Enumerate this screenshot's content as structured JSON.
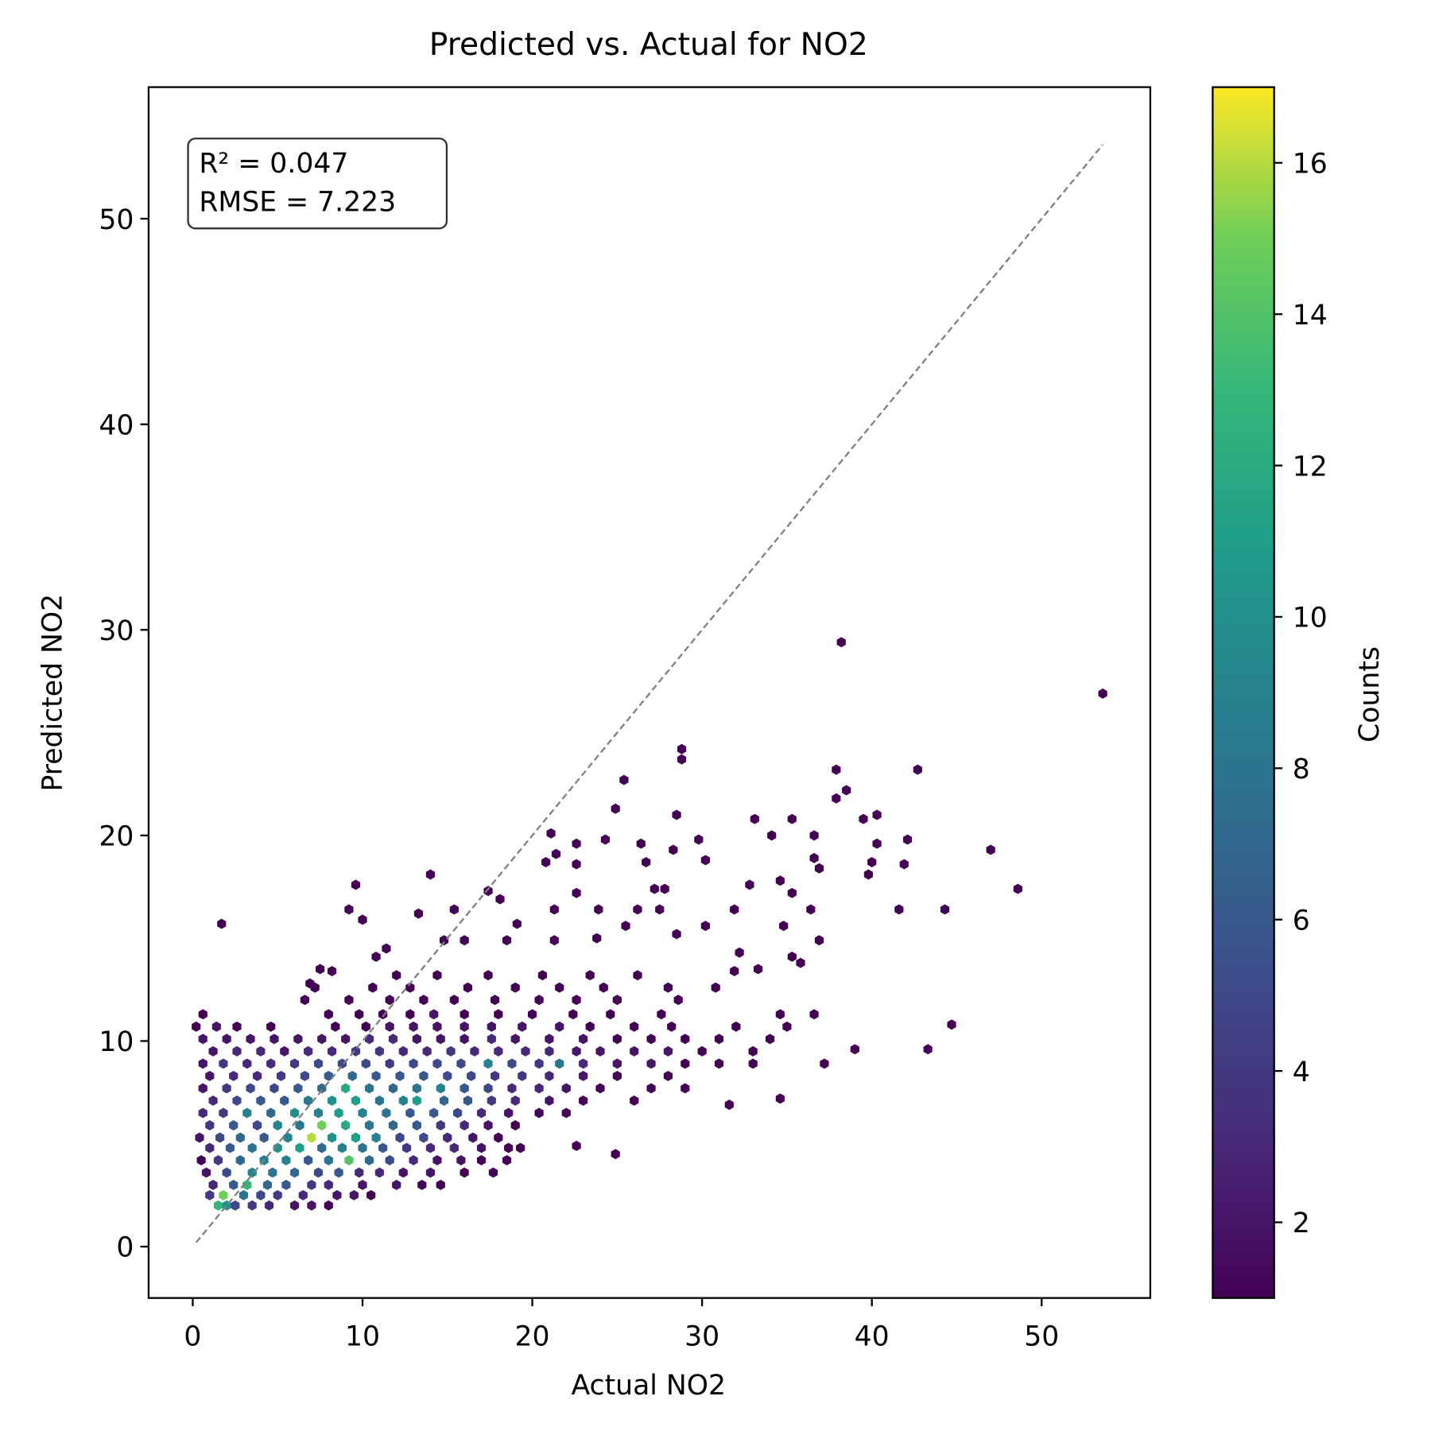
{
  "chart_data": {
    "type": "hexbin",
    "title": "Predicted vs. Actual for NO2",
    "x_label": "Actual NO2",
    "y_label": "Predicted NO2",
    "annotations": [
      "R² = 0.047",
      "RMSE = 7.223"
    ],
    "xlim": [
      -2.6,
      56.4
    ],
    "ylim": [
      -2.5,
      56.4
    ],
    "xticks": [
      0,
      10,
      20,
      30,
      40,
      50
    ],
    "yticks": [
      0,
      10,
      20,
      30,
      40,
      50
    ],
    "identity_line": {
      "color": "#808080",
      "x": [
        0.2,
        53.6
      ],
      "y": [
        0.2,
        53.6
      ]
    },
    "colormap": "viridis",
    "colorbar": {
      "label": "Counts",
      "lim": [
        1,
        17
      ],
      "ticks": [
        2,
        4,
        6,
        8,
        10,
        12,
        14,
        16
      ]
    },
    "x": [
      1.5,
      2.0,
      2.5,
      3.5,
      4.5,
      6,
      7,
      8,
      1.0,
      1.8,
      3.0,
      4.0,
      5.0,
      6.5,
      8.5,
      9.5,
      10.5,
      1.2,
      2.4,
      3.2,
      4.4,
      5.5,
      7,
      8,
      10,
      12,
      13.5,
      14.6,
      0.8,
      2.0,
      3.5,
      4.7,
      6.0,
      7.4,
      8.6,
      9.8,
      11,
      12.4,
      14,
      16,
      17.7,
      0.5,
      1.5,
      2.8,
      4.2,
      5.5,
      6.8,
      8.0,
      9.2,
      10.4,
      11.6,
      13,
      14.4,
      15.8,
      17,
      18.5,
      1.0,
      2.2,
      3.5,
      5.0,
      6.3,
      7.6,
      8.8,
      10.0,
      11.2,
      12.6,
      14.0,
      15.4,
      17.0,
      18.6,
      19.3,
      0.4,
      1.6,
      2.8,
      4.2,
      5.6,
      7.0,
      8.2,
      9.6,
      10.8,
      12.2,
      13.6,
      15.0,
      16.5,
      18.0,
      1.0,
      2.4,
      3.8,
      5.0,
      6.3,
      7.6,
      9.0,
      10.4,
      11.8,
      13.2,
      14.6,
      16.0,
      17.4,
      19.0,
      0.6,
      1.8,
      3.2,
      4.6,
      6.0,
      7.4,
      8.6,
      10.0,
      11.4,
      12.8,
      14.2,
      15.6,
      17.0,
      18.6,
      20.4,
      22,
      1.2,
      2.6,
      4.0,
      5.4,
      6.8,
      8.2,
      9.6,
      11.0,
      12.4,
      13.2,
      14.8,
      16.2,
      17.6,
      19.0,
      21,
      23,
      26,
      0.6,
      2.0,
      3.4,
      4.8,
      6.2,
      7.6,
      9.0,
      10.4,
      11.8,
      13.2,
      14.6,
      16.0,
      17.4,
      18.8,
      20.4,
      22,
      24,
      27,
      29,
      1.0,
      2.4,
      3.8,
      5.2,
      6.6,
      8.0,
      9.4,
      10.8,
      12.2,
      13.6,
      15.0,
      16.4,
      17.8,
      19.4,
      21,
      23,
      25,
      28,
      0.6,
      1.8,
      3.2,
      4.6,
      6.0,
      7.4,
      8.8,
      10.2,
      11.6,
      13.0,
      14.4,
      15.8,
      17.4,
      18.8,
      20.4,
      21.6,
      23,
      25,
      27,
      29,
      31,
      33,
      1.2,
      2.6,
      4.0,
      5.4,
      6.8,
      8.2,
      9.6,
      11.0,
      12.4,
      13.8,
      15.2,
      16.6,
      18,
      19.6,
      21,
      22.6,
      24,
      26,
      28,
      30,
      33,
      0.6,
      2.0,
      3.4,
      4.8,
      6.2,
      7.6,
      9.0,
      10.4,
      11.8,
      13.2,
      14.6,
      16,
      17.6,
      19,
      21,
      23,
      25,
      27,
      29,
      31,
      34,
      0.2,
      1.4,
      2.6,
      4.6,
      8.4,
      10.2,
      11.6,
      13,
      14.4,
      16,
      17.6,
      19.4,
      21.6,
      23.4,
      26,
      28.2,
      32,
      35,
      0.6,
      8,
      9.8,
      11.2,
      12.8,
      14.2,
      16,
      18,
      20,
      22.4,
      24.6,
      27.6,
      34.6,
      36.6,
      6.6,
      9.2,
      11.6,
      13.6,
      15.4,
      17.8,
      20.4,
      22.6,
      25,
      28.6,
      7.2,
      10.6,
      12.8,
      16.2,
      19,
      21.6,
      24.2,
      28,
      30.8,
      12,
      14.4,
      17.4,
      20.6,
      23.4,
      26.2,
      1.7,
      9.6,
      14,
      38.2,
      53.6,
      28.8,
      28.8,
      25.4,
      37.9,
      42.7,
      38.5,
      37.9,
      24.9,
      28.5,
      39.5,
      40.3,
      33.1,
      35.3,
      21.1,
      22.6,
      24.3,
      26.4,
      29.8,
      34.1,
      36.6,
      40.3,
      42.1,
      47,
      20.8,
      21.4,
      22.6,
      26.7,
      28.3,
      30.2,
      36.6,
      36.9,
      40.0,
      41.9,
      39.8,
      17.4,
      18.1,
      22.6,
      27.2,
      27.8,
      32.8,
      34.6,
      35.3,
      48.6,
      9.2,
      10,
      13.3,
      15.4,
      21.3,
      23.9,
      26.2,
      27.5,
      31.9,
      36.4,
      41.6,
      44.3,
      19.1,
      25.5,
      30.2,
      34.8,
      36.9,
      28.5,
      23.8,
      44.7,
      43.3,
      39.0,
      37.2,
      34.6,
      31.6,
      24.9,
      22.6,
      35.3,
      32.2,
      33.3,
      31.9,
      35.8,
      8.2,
      7.5,
      6.9,
      10.8,
      11.4,
      14.8,
      16.0,
      18.5,
      21.3
    ],
    "y": [
      2.0,
      2.0,
      2.0,
      2.0,
      2.0,
      2.0,
      2.0,
      2.0,
      2.5,
      2.5,
      2.5,
      2.5,
      2.5,
      2.5,
      2.5,
      2.5,
      2.5,
      3.0,
      3.0,
      3.0,
      3.0,
      3.0,
      3.0,
      3.0,
      3.0,
      3.0,
      3.0,
      3.0,
      3.6,
      3.6,
      3.6,
      3.6,
      3.6,
      3.6,
      3.6,
      3.6,
      3.6,
      3.6,
      3.6,
      3.6,
      3.6,
      4.2,
      4.2,
      4.2,
      4.2,
      4.2,
      4.2,
      4.2,
      4.2,
      4.2,
      4.2,
      4.2,
      4.2,
      4.2,
      4.2,
      4.2,
      4.8,
      4.8,
      4.8,
      4.8,
      4.8,
      4.8,
      4.8,
      4.8,
      4.8,
      4.8,
      4.8,
      4.8,
      4.8,
      4.8,
      4.8,
      5.3,
      5.3,
      5.3,
      5.3,
      5.3,
      5.3,
      5.3,
      5.3,
      5.3,
      5.3,
      5.3,
      5.3,
      5.3,
      5.3,
      5.9,
      5.9,
      5.9,
      5.9,
      5.9,
      5.9,
      5.9,
      5.9,
      5.9,
      5.9,
      5.9,
      5.9,
      5.9,
      5.9,
      6.5,
      6.5,
      6.5,
      6.5,
      6.5,
      6.5,
      6.5,
      6.5,
      6.5,
      6.5,
      6.5,
      6.5,
      6.5,
      6.5,
      6.5,
      6.5,
      7.1,
      7.1,
      7.1,
      7.1,
      7.1,
      7.1,
      7.1,
      7.1,
      7.1,
      7.1,
      7.1,
      7.1,
      7.1,
      7.1,
      7.1,
      7.1,
      7.1,
      7.7,
      7.7,
      7.7,
      7.7,
      7.7,
      7.7,
      7.7,
      7.7,
      7.7,
      7.7,
      7.7,
      7.7,
      7.7,
      7.7,
      7.7,
      7.7,
      7.7,
      7.7,
      7.7,
      8.3,
      8.3,
      8.3,
      8.3,
      8.3,
      8.3,
      8.3,
      8.3,
      8.3,
      8.3,
      8.3,
      8.3,
      8.3,
      8.3,
      8.3,
      8.3,
      8.3,
      8.3,
      8.9,
      8.9,
      8.9,
      8.9,
      8.9,
      8.9,
      8.9,
      8.9,
      8.9,
      8.9,
      8.9,
      8.9,
      8.9,
      8.9,
      8.9,
      8.9,
      8.9,
      8.9,
      8.9,
      8.9,
      8.9,
      8.9,
      9.5,
      9.5,
      9.5,
      9.5,
      9.5,
      9.5,
      9.5,
      9.5,
      9.5,
      9.5,
      9.5,
      9.5,
      9.5,
      9.5,
      9.5,
      9.5,
      9.5,
      9.5,
      9.5,
      9.5,
      9.5,
      10.1,
      10.1,
      10.1,
      10.1,
      10.1,
      10.1,
      10.1,
      10.1,
      10.1,
      10.1,
      10.1,
      10.1,
      10.1,
      10.1,
      10.1,
      10.1,
      10.1,
      10.1,
      10.1,
      10.1,
      10.1,
      10.7,
      10.7,
      10.7,
      10.7,
      10.7,
      10.7,
      10.7,
      10.7,
      10.7,
      10.7,
      10.7,
      10.7,
      10.7,
      10.7,
      10.7,
      10.7,
      10.7,
      10.7,
      11.3,
      11.3,
      11.3,
      11.3,
      11.3,
      11.3,
      11.3,
      11.3,
      11.3,
      11.3,
      11.3,
      11.3,
      11.3,
      11.3,
      12.0,
      12.0,
      12.0,
      12.0,
      12.0,
      12.0,
      12.0,
      12.0,
      12.0,
      12.0,
      12.6,
      12.6,
      12.6,
      12.6,
      12.6,
      12.6,
      12.6,
      12.6,
      12.6,
      13.2,
      13.2,
      13.2,
      13.2,
      13.2,
      13.2,
      15.7,
      17.6,
      18.1,
      29.4,
      26.9,
      24.2,
      23.7,
      22.7,
      23.2,
      23.2,
      22.2,
      21.8,
      21.3,
      21,
      20.8,
      21,
      20.8,
      20.8,
      20.1,
      19.6,
      19.8,
      19.6,
      19.8,
      20,
      20,
      19.6,
      19.8,
      19.3,
      18.7,
      19.1,
      18.6,
      18.7,
      19.3,
      18.8,
      18.9,
      18.4,
      18.7,
      18.6,
      18.1,
      17.3,
      16.9,
      17.2,
      17.4,
      17.4,
      17.6,
      17.8,
      17.2,
      17.4,
      16.4,
      15.9,
      16.2,
      16.4,
      16.4,
      16.4,
      16.4,
      16.4,
      16.4,
      16.4,
      16.4,
      16.4,
      15.7,
      15.6,
      15.6,
      15.6,
      14.9,
      15.2,
      15.0,
      10.8,
      9.6,
      9.6,
      8.9,
      7.2,
      6.9,
      4.5,
      4.9,
      14.1,
      14.3,
      13.5,
      13.4,
      13.8,
      13.4,
      13.5,
      12.8,
      14.1,
      14.5,
      14.9,
      14.9,
      14.9,
      14.9
    ],
    "counts": [
      13,
      10,
      5,
      4,
      3,
      2,
      2,
      1,
      4,
      15,
      8,
      5,
      4,
      3,
      2,
      2,
      1,
      3,
      6,
      13,
      7,
      6,
      4,
      3,
      2,
      2,
      1,
      1,
      2,
      5,
      9,
      8,
      7,
      5,
      6,
      3,
      3,
      2,
      2,
      1,
      1,
      1,
      4,
      7,
      9,
      9,
      6,
      8,
      14,
      7,
      5,
      3,
      2,
      2,
      1,
      1,
      3,
      6,
      8,
      10,
      11,
      7,
      9,
      8,
      6,
      4,
      3,
      3,
      2,
      1,
      1,
      2,
      5,
      7,
      6,
      9,
      16,
      10,
      11,
      9,
      5,
      5,
      3,
      2,
      1,
      4,
      6,
      5,
      9,
      8,
      15,
      12,
      8,
      7,
      6,
      4,
      3,
      2,
      1,
      3,
      4,
      9,
      7,
      10,
      9,
      11,
      9,
      8,
      6,
      6,
      5,
      3,
      2,
      1,
      1,
      3,
      5,
      6,
      6,
      8,
      10,
      11,
      8,
      9,
      11,
      7,
      6,
      4,
      3,
      2,
      1,
      1,
      2,
      4,
      5,
      5,
      6,
      7,
      12,
      8,
      7,
      8,
      9,
      6,
      5,
      3,
      3,
      2,
      1,
      1,
      1,
      2,
      3,
      3,
      4,
      5,
      6,
      7,
      6,
      6,
      6,
      5,
      5,
      4,
      4,
      3,
      2,
      1,
      1,
      2,
      4,
      3,
      3,
      4,
      5,
      5,
      5,
      4,
      5,
      5,
      5,
      9,
      5,
      4,
      8,
      3,
      2,
      2,
      1,
      1,
      1,
      2,
      3,
      3,
      2,
      3,
      3,
      4,
      4,
      3,
      3,
      4,
      3,
      3,
      3,
      3,
      2,
      2,
      2,
      2,
      1,
      1,
      2,
      2,
      2,
      2,
      2,
      2,
      2,
      3,
      3,
      2,
      2,
      2,
      3,
      2,
      2,
      2,
      1,
      1,
      1,
      1,
      1,
      1,
      2,
      1,
      1,
      1,
      1,
      2,
      2,
      2,
      2,
      2,
      2,
      2,
      1,
      1,
      1,
      1,
      1,
      1,
      1,
      1,
      1,
      1,
      2,
      1,
      1,
      1,
      1,
      1,
      1,
      1,
      1,
      1,
      1,
      1,
      1,
      1,
      1,
      1,
      1,
      1,
      1,
      1,
      1,
      1,
      1,
      1,
      1,
      1,
      1,
      1,
      1,
      1,
      1,
      1,
      1,
      1,
      1,
      1,
      1,
      1,
      1,
      1,
      1,
      1,
      1,
      1,
      1,
      1,
      1,
      1,
      1,
      1,
      1,
      1,
      1,
      1,
      1,
      1,
      1,
      1,
      1,
      1,
      1,
      1,
      1,
      1,
      1,
      1,
      1,
      1,
      1,
      1,
      1,
      1,
      1,
      1,
      1,
      1,
      1,
      1,
      1,
      1,
      1,
      1,
      1,
      1,
      1,
      1,
      1,
      1,
      1,
      1,
      1,
      1,
      1,
      1,
      1,
      1,
      1,
      1,
      1,
      1,
      1,
      1,
      1,
      1,
      1,
      1,
      1,
      1,
      1,
      1,
      1,
      1,
      1,
      1,
      1,
      1,
      1,
      1,
      1,
      1,
      1,
      1,
      1
    ]
  }
}
